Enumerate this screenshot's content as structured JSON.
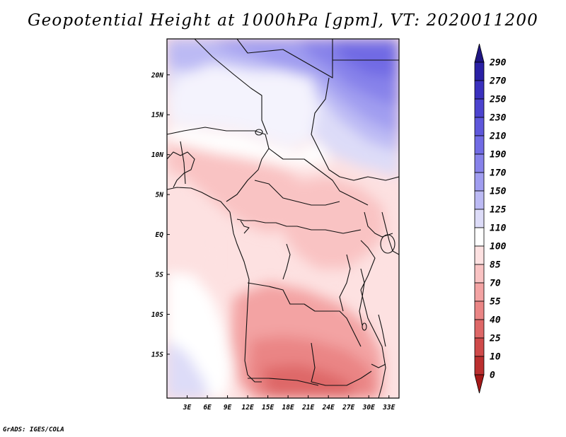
{
  "title": "Geopotential Height at 1000hPa [gpm], VT: 2020011200",
  "credit": "GrADS: IGES/COLA",
  "colors": {
    "frame": "#000000",
    "border": "#111111"
  },
  "chart_data": {
    "type": "heatmap",
    "title": "Geopotential Height at 1000hPa [gpm], VT: 2020011200",
    "variable": "Geopotential Height",
    "level": "1000hPa",
    "units": "gpm",
    "valid_time": "2020011200",
    "lon_range": [
      0,
      34.5
    ],
    "lat_range": [
      -20.5,
      24.5
    ],
    "x_ticks": [
      "3E",
      "6E",
      "9E",
      "12E",
      "15E",
      "18E",
      "21E",
      "24E",
      "27E",
      "30E",
      "33E"
    ],
    "x_tick_values": [
      3,
      6,
      9,
      12,
      15,
      18,
      21,
      24,
      27,
      30,
      33
    ],
    "y_ticks": [
      "20N",
      "15N",
      "10N",
      "5N",
      "EQ",
      "5S",
      "10S",
      "15S"
    ],
    "y_tick_values": [
      20,
      15,
      10,
      5,
      0,
      -5,
      -10,
      -15
    ],
    "colorbar": {
      "levels": [
        "290",
        "270",
        "250",
        "230",
        "210",
        "190",
        "170",
        "150",
        "125",
        "110",
        "100",
        "85",
        "70",
        "55",
        "40",
        "25",
        "10",
        "0"
      ],
      "colors": [
        "#1f1582",
        "#2a20a5",
        "#3a30be",
        "#4c43cf",
        "#5e57db",
        "#716be4",
        "#8782ea",
        "#a09df0",
        "#bcbaf4",
        "#dddcf8",
        "#ffffff",
        "#fde1e1",
        "#f9c3c3",
        "#f3a3a3",
        "#ea8585",
        "#de6767",
        "#cf4a4a",
        "#bb2f2f",
        "#a51818"
      ]
    },
    "summary": {
      "north_range_gpm": "150-230",
      "sahel_range_gpm": "100-125",
      "central_africa_range_gpm": "85-100",
      "south_interior_range_gpm": "40-70",
      "southwest_coast_range_gpm": "110-150"
    }
  }
}
